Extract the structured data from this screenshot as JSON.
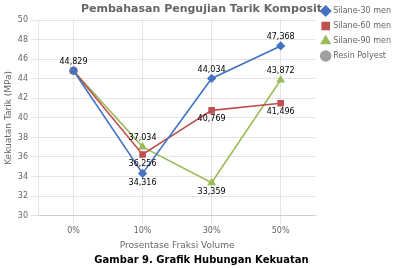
{
  "chart_data": {
    "type": "line",
    "title": "Pembahasan Pengujian Tarik Komposit",
    "caption": "Gambar 9. Grafik Hubungan Kekuatan",
    "x_label": "Prosentase Fraksi Volume",
    "y_label": "Kekuatan Tarik (MPa)",
    "categories": [
      "0%",
      "10%",
      "30%",
      "50%"
    ],
    "series": [
      {
        "name": "Silane-30 men",
        "color": "#4472C4",
        "marker": "diamond",
        "values": [
          44.829,
          34.316,
          44.034,
          47.368
        ]
      },
      {
        "name": "Silane-60 men",
        "color": "#C0504D",
        "marker": "square",
        "values": [
          44.829,
          36.256,
          40.769,
          41.496
        ]
      },
      {
        "name": "Silane-90 men",
        "color": "#9BBB59",
        "marker": "triangle",
        "values": [
          44.829,
          37.034,
          33.359,
          43.872
        ]
      },
      {
        "name": "Resin Polyest",
        "color": "#A0A0A0",
        "marker": "circle",
        "values": [
          44.829,
          null,
          null,
          null
        ]
      }
    ],
    "ylim": [
      30,
      50
    ],
    "yticks": [
      30,
      32,
      34,
      36,
      38,
      40,
      42,
      44,
      46,
      48,
      50
    ],
    "grid": true,
    "legend": "right",
    "annotations": [
      {
        "text": "44,829",
        "x": "0%",
        "y": 44.829
      },
      {
        "text": "34,316",
        "x": "10%",
        "y": 34.316
      },
      {
        "text": "44,034",
        "x": "30%",
        "y": 44.034
      },
      {
        "text": "47,368",
        "x": "50%",
        "y": 47.368
      },
      {
        "text": "36,256",
        "x": "10%",
        "y": 36.256
      },
      {
        "text": "40,769",
        "x": "30%",
        "y": 40.769
      },
      {
        "text": "41,496",
        "x": "50%",
        "y": 41.496
      },
      {
        "text": "37,034",
        "x": "10%",
        "y": 37.034
      },
      {
        "text": "33,359",
        "x": "30%",
        "y": 33.359
      },
      {
        "text": "43,872",
        "x": "50%",
        "y": 43.872
      }
    ]
  }
}
